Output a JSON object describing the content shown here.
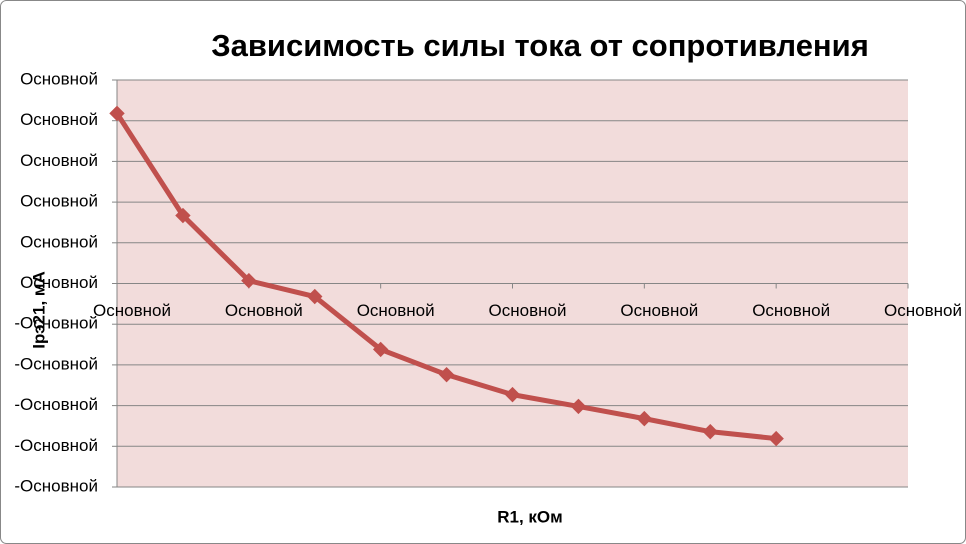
{
  "chart_data": {
    "type": "line",
    "title": "Зависимость силы тока от сопротивления",
    "x_label": "R1, кОм",
    "y_label": "Iрэ21, мА",
    "x": [
      0,
      1,
      2,
      3,
      4,
      5,
      6,
      7,
      8,
      9,
      10
    ],
    "series": [
      {
        "name": "Iрэ21",
        "color": "#c0504d",
        "values": [
          4.18,
          1.67,
          0.07,
          -0.32,
          -1.62,
          -2.24,
          -2.73,
          -3.02,
          -3.32,
          -3.64,
          -3.81
        ]
      }
    ],
    "xlim": [
      0,
      12
    ],
    "xticks": [
      {
        "value": 0,
        "label": "Основной"
      },
      {
        "value": 2,
        "label": "Основной"
      },
      {
        "value": 4,
        "label": "Основной"
      },
      {
        "value": 6,
        "label": "Основной"
      },
      {
        "value": 8,
        "label": "Основной"
      },
      {
        "value": 10,
        "label": "Основной"
      },
      {
        "value": 12,
        "label": "Основной"
      }
    ],
    "ylim": [
      -5,
      5
    ],
    "yticks": [
      {
        "value": -5,
        "label": "-Основной"
      },
      {
        "value": -4,
        "label": "-Основной"
      },
      {
        "value": -3,
        "label": "-Основной"
      },
      {
        "value": -2,
        "label": "-Основной"
      },
      {
        "value": -1,
        "label": "-Основной"
      },
      {
        "value": 0,
        "label": "Основной"
      },
      {
        "value": 1,
        "label": "Основной"
      },
      {
        "value": 2,
        "label": "Основной"
      },
      {
        "value": 3,
        "label": "Основной"
      },
      {
        "value": 4,
        "label": "Основной"
      },
      {
        "value": 5,
        "label": "Основной"
      }
    ],
    "grid": true
  }
}
